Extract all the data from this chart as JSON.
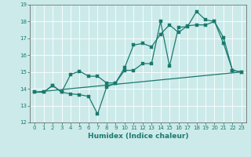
{
  "xlabel": "Humidex (Indice chaleur)",
  "bg_color": "#cceaea",
  "grid_color": "#b0d8d8",
  "line_color": "#1a7a6e",
  "xlim": [
    -0.5,
    23.5
  ],
  "ylim": [
    12,
    19
  ],
  "yticks": [
    12,
    13,
    14,
    15,
    16,
    17,
    18,
    19
  ],
  "xticks": [
    0,
    1,
    2,
    3,
    4,
    5,
    6,
    7,
    8,
    9,
    10,
    11,
    12,
    13,
    14,
    15,
    16,
    17,
    18,
    19,
    20,
    21,
    22,
    23
  ],
  "line1_x": [
    0,
    1,
    2,
    3,
    4,
    5,
    6,
    7,
    8,
    9,
    10,
    11,
    12,
    13,
    14,
    15,
    16,
    17,
    18,
    19,
    20,
    21,
    22,
    23
  ],
  "line1_y": [
    13.8,
    13.8,
    14.2,
    13.8,
    13.7,
    13.65,
    13.55,
    12.5,
    14.1,
    14.35,
    15.1,
    15.1,
    15.5,
    15.5,
    18.0,
    15.35,
    17.65,
    17.7,
    18.6,
    18.1,
    18.0,
    16.7,
    15.1,
    15.0
  ],
  "line2_x": [
    0,
    1,
    2,
    3,
    4,
    5,
    6,
    7,
    8,
    9,
    10,
    11,
    12,
    13,
    14,
    15,
    16,
    17,
    18,
    19,
    20,
    21,
    22,
    23
  ],
  "line2_y": [
    13.8,
    13.8,
    14.2,
    13.8,
    14.85,
    15.05,
    14.75,
    14.75,
    14.35,
    14.35,
    15.25,
    16.6,
    16.7,
    16.5,
    17.25,
    17.8,
    17.35,
    17.75,
    17.8,
    17.8,
    18.0,
    17.05,
    15.1,
    15.0
  ],
  "line3_x": [
    0,
    23
  ],
  "line3_y": [
    13.8,
    15.0
  ],
  "marker_size": 2.5,
  "linewidth": 0.9
}
